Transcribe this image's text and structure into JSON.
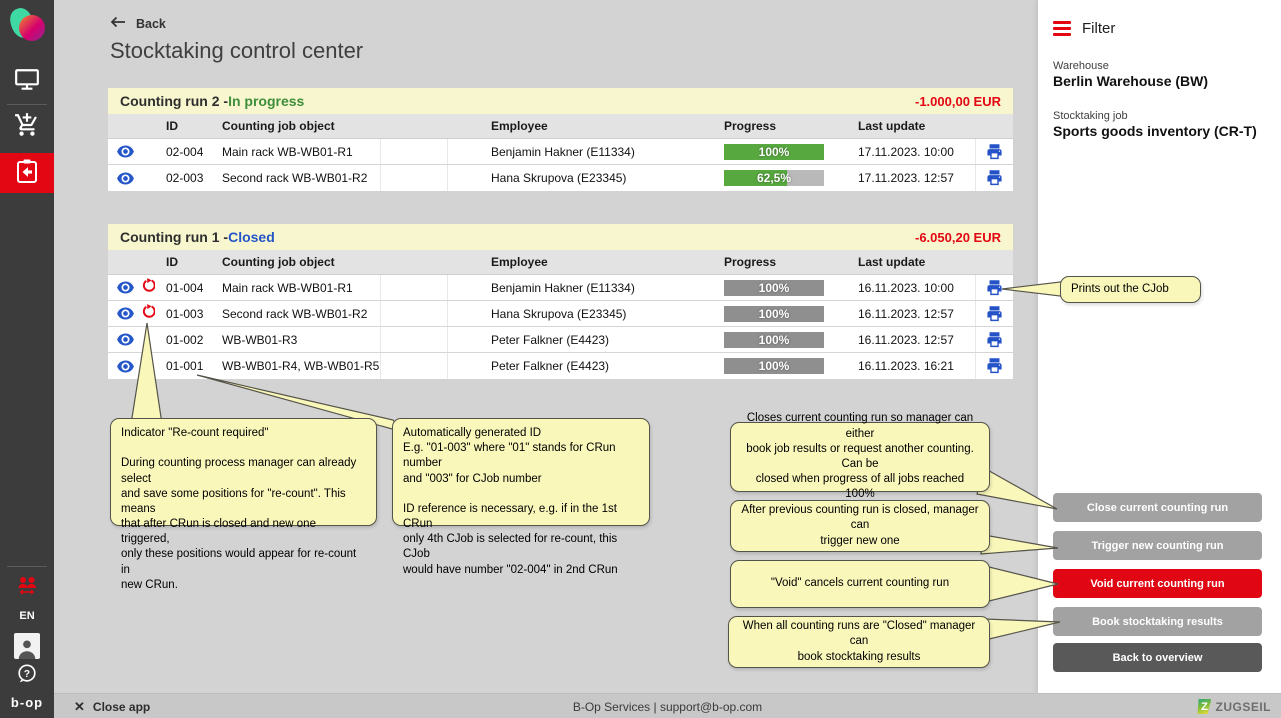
{
  "colors": {
    "accent_red": "#e30613",
    "status_in_progress_green": "#3e8e3a",
    "status_closed_blue": "#2556c8",
    "progress_green": "#57a83f",
    "progress_gray": "#8f8f8f",
    "note_yellow": "#faf7bb",
    "run_header_yellow": "#f7f6cf",
    "icon_blue": "#2557c9"
  },
  "sidebar": {
    "icons": [
      "app-logo",
      "monitor",
      "add-to-cart",
      "stocktaking-active",
      "users-red",
      "avatar",
      "help",
      "bop-logo"
    ],
    "language": "EN",
    "brand": "b-op"
  },
  "header": {
    "back_label": "Back",
    "title": "Stocktaking control center"
  },
  "table_columns": [
    "ID",
    "Counting job object",
    "Employee",
    "Progress",
    "Last update"
  ],
  "runs": [
    {
      "title_prefix": "Counting run 2 - ",
      "status": "In progress",
      "amount": "-1.000,00 EUR",
      "rows": [
        {
          "id": "02-004",
          "object": "Main rack WB-WB01-R1",
          "employee": "Benjamin Hakner (E11334)",
          "progress_value": 100,
          "progress_label": "100%",
          "last_update": "17.11.2023. 10:00",
          "recount": false
        },
        {
          "id": "02-003",
          "object": "Second rack WB-WB01-R2",
          "employee": "Hana Skrupova (E23345)",
          "progress_value": 62.5,
          "progress_label": "62,5%",
          "last_update": "17.11.2023. 12:57",
          "recount": false
        }
      ]
    },
    {
      "title_prefix": "Counting run 1 - ",
      "status": "Closed",
      "amount": "-6.050,20 EUR",
      "rows": [
        {
          "id": "01-004",
          "object": "Main rack WB-WB01-R1",
          "employee": "Benjamin Hakner (E11334)",
          "progress_value": 100,
          "progress_label": "100%",
          "last_update": "16.11.2023. 10:00",
          "recount": true
        },
        {
          "id": "01-003",
          "object": "Second rack WB-WB01-R2",
          "employee": "Hana Skrupova (E23345)",
          "progress_value": 100,
          "progress_label": "100%",
          "last_update": "16.11.2023. 12:57",
          "recount": true
        },
        {
          "id": "01-002",
          "object": "WB-WB01-R3",
          "employee": "Peter Falkner (E4423)",
          "progress_value": 100,
          "progress_label": "100%",
          "last_update": "16.11.2023. 12:57",
          "recount": false
        },
        {
          "id": "01-001",
          "object": "WB-WB01-R4, WB-WB01-R5",
          "employee": "Peter Falkner (E4423)",
          "progress_value": 100,
          "progress_label": "100%",
          "last_update": "16.11.2023. 16:21",
          "recount": false
        }
      ]
    }
  ],
  "filter_panel": {
    "title": "Filter",
    "warehouse_label": "Warehouse",
    "warehouse_value": "Berlin Warehouse (BW)",
    "job_label": "Stocktaking job",
    "job_value": "Sports goods inventory (CR-T)"
  },
  "buttons": [
    {
      "label": "Close current counting run"
    },
    {
      "label": "Trigger new counting run"
    },
    {
      "label": "Void current counting run"
    },
    {
      "label": "Book stocktaking results"
    },
    {
      "label": "Back to overview"
    }
  ],
  "notes": {
    "print": "Prints out the CJob",
    "recount": "Indicator \"Re-count required\"\n\nDuring counting process manager can already select\nand save some positions for \"re-count\". This means\nthat after CRun is closed and new one triggered,\nonly these positions would appear for re-count in\nnew CRun.",
    "auto_id": "Automatically generated ID\nE.g. \"01-003\" where \"01\" stands for CRun number\nand \"003\" for CJob number\n\nID reference is necessary, e.g. if in the 1st CRun\nonly 4th CJob is selected for re-count, this CJob\nwould have number \"02-004\" in 2nd CRun",
    "close_run": "Closes current counting run so manager can either\nbook job results or request another counting. Can be\nclosed when progress of all jobs reached 100%",
    "trigger_run": "After previous counting run is closed, manager can\ntrigger new one",
    "void_run": "\"Void\" cancels current counting run",
    "book_results": "When all counting runs are \"Closed\" manager can\nbook stocktaking results"
  },
  "footer": {
    "close_label": "Close app",
    "center_text": "B-Op Services | support@b-op.com",
    "brand": "ZUGSEIL"
  }
}
